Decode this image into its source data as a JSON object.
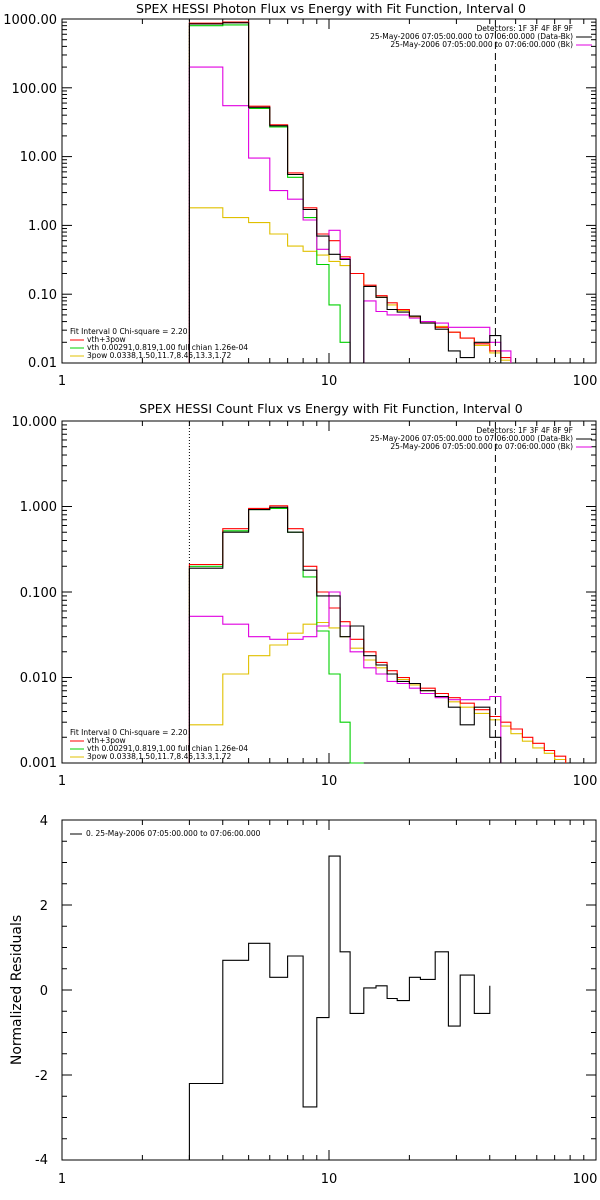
{
  "colors": {
    "black": "#000000",
    "red": "#ff0000",
    "green": "#00d000",
    "magenta": "#e000e0",
    "yellow": "#e0c000"
  },
  "chart_data": [
    {
      "type": "line",
      "title": "SPEX HESSI Photon Flux vs Energy with Fit Function, Interval 0",
      "xscale": "log",
      "yscale": "log",
      "xlim": [
        1,
        100
      ],
      "ylim": [
        0.01,
        1000
      ],
      "xticks": [
        "1",
        "10",
        "100"
      ],
      "yticks": [
        "0.01",
        "0.10",
        "1.00",
        "10.00",
        "100.00",
        "1000.00"
      ],
      "info_lines": [
        "Detectors: 1F 3F 4F 8F 9F",
        "25-May-2006 07:05:00.000 to 07:06:00.000 (Data-Bk)",
        "25-May-2006 07:05:00.000 to 07:06:00.000 (Bk)"
      ],
      "legend_lines": [
        "Fit Interval  0   Chi-square = 2.20",
        "vth+3pow",
        "vth 0.00291,0.819,1.00   full chian 1.26e-04",
        "3pow 0.0338,1.50,11.7,8.45,13.3,1.72"
      ],
      "edges": [
        3.0,
        4.0,
        5.0,
        6.0,
        7.0,
        8.0,
        9.0,
        10.0,
        11.0,
        12.0,
        13.5,
        15.0,
        16.5,
        18.0,
        20.0,
        22.0,
        25.0,
        28.0,
        31.0,
        35.0,
        40.0,
        44.0,
        48.0
      ],
      "series": [
        {
          "name": "Data-Bk",
          "color": "black",
          "values": [
            850,
            880,
            52,
            28,
            5.5,
            1.7,
            0.7,
            0.38,
            0.32,
            0.009,
            0.13,
            0.09,
            0.06,
            0.055,
            0.048,
            0.038,
            0.031,
            0.015,
            0.012,
            0.02,
            0.025,
            null
          ]
        },
        {
          "name": "Bk",
          "color": "magenta",
          "values": [
            200,
            55,
            9.5,
            3.2,
            2.4,
            1.2,
            0.45,
            0.85,
            0.33,
            0.009,
            0.08,
            0.056,
            0.05,
            0.05,
            0.045,
            0.04,
            0.038,
            0.033,
            0.033,
            0.033,
            0.02,
            0.015
          ]
        },
        {
          "name": "vth+3pow",
          "color": "red",
          "values": [
            870,
            900,
            54,
            29,
            5.8,
            1.8,
            0.75,
            0.6,
            0.35,
            0.2,
            0.135,
            0.095,
            0.075,
            0.06,
            0.048,
            0.04,
            0.033,
            0.028,
            0.023,
            0.019,
            0.015,
            0.012
          ]
        },
        {
          "name": "vth",
          "color": "green",
          "values": [
            800,
            820,
            50,
            27,
            5.0,
            1.3,
            0.27,
            0.07,
            0.02,
            0.003,
            null,
            null,
            null,
            null,
            null,
            null,
            null,
            null,
            null,
            null,
            null,
            null
          ]
        },
        {
          "name": "3pow",
          "color": "yellow",
          "values": [
            1.8,
            1.3,
            1.1,
            0.75,
            0.5,
            0.42,
            0.37,
            0.3,
            0.26,
            0.2,
            0.13,
            0.09,
            0.07,
            0.058,
            0.047,
            0.04,
            0.034,
            0.028,
            0.023,
            0.018,
            0.014,
            0.011
          ]
        }
      ],
      "vlines": [
        {
          "x": 3.0,
          "style": "dotted"
        },
        {
          "x": 42.0,
          "style": "dashed"
        }
      ]
    },
    {
      "type": "line",
      "title": "SPEX HESSI Count Flux vs Energy with Fit Function, Interval 0",
      "xscale": "log",
      "yscale": "log",
      "xlim": [
        1,
        100
      ],
      "ylim": [
        0.001,
        10
      ],
      "xticks": [
        "1",
        "10",
        "100"
      ],
      "yticks": [
        "0.001",
        "0.010",
        "0.100",
        "1.000",
        "10.000"
      ],
      "info_lines": [
        "Detectors: 1F 3F 4F 8F 9F",
        "25-May-2006 07:05:00.000 to 07:06:00.000 (Data-Bk)",
        "25-May-2006 07:05:00.000 to 07:06:00.000 (Bk)"
      ],
      "legend_lines": [
        "Fit Interval  0   Chi-square = 2.20",
        "vth+3pow",
        "vth 0.00291,0.819,1.00   full chian 1.26e-04",
        "3pow 0.0338,1.50,11.7,8.45,13.3,1.72"
      ],
      "edges": [
        3.0,
        4.0,
        5.0,
        6.0,
        7.0,
        8.0,
        9.0,
        10.0,
        11.0,
        12.0,
        13.5,
        15.0,
        16.5,
        18.0,
        20.0,
        22.0,
        25.0,
        28.0,
        31.0,
        35.0,
        40.0,
        44.0,
        48.0,
        53.0,
        58.0,
        64.0,
        70.0,
        77.0
      ],
      "series": [
        {
          "name": "Data-Bk",
          "color": "black",
          "values": [
            0.19,
            0.5,
            0.92,
            0.98,
            0.5,
            0.18,
            0.09,
            0.09,
            0.03,
            0.04,
            0.018,
            0.014,
            0.011,
            0.009,
            0.0085,
            0.007,
            0.006,
            0.0045,
            0.0028,
            0.0045,
            0.002,
            null,
            null,
            null,
            null,
            null,
            null
          ]
        },
        {
          "name": "Bk",
          "color": "magenta",
          "values": [
            0.052,
            0.042,
            0.03,
            0.028,
            0.028,
            0.03,
            0.04,
            0.1,
            0.04,
            0.02,
            0.013,
            0.011,
            0.009,
            0.0085,
            0.0075,
            0.0065,
            0.0058,
            0.0055,
            0.0055,
            0.0055,
            0.006,
            null,
            null,
            null,
            null,
            null,
            null
          ]
        },
        {
          "name": "vth+3pow",
          "color": "red",
          "values": [
            0.21,
            0.55,
            0.95,
            1.02,
            0.55,
            0.2,
            0.1,
            0.065,
            0.045,
            0.028,
            0.02,
            0.015,
            0.012,
            0.01,
            0.0085,
            0.0075,
            0.0065,
            0.0058,
            0.005,
            0.0042,
            0.0035,
            0.003,
            0.0025,
            0.002,
            0.0017,
            0.0014,
            0.0012
          ]
        },
        {
          "name": "vth",
          "color": "green",
          "values": [
            0.2,
            0.52,
            0.92,
            0.95,
            0.5,
            0.15,
            0.035,
            0.011,
            0.003,
            0.001,
            null,
            null,
            null,
            null,
            null,
            null,
            null,
            null,
            null,
            null,
            null,
            null,
            null,
            null,
            null,
            null,
            null
          ]
        },
        {
          "name": "3pow",
          "color": "yellow",
          "values": [
            0.0028,
            0.011,
            0.018,
            0.024,
            0.033,
            0.042,
            0.044,
            0.038,
            0.03,
            0.022,
            0.016,
            0.013,
            0.011,
            0.0095,
            0.0082,
            0.007,
            0.006,
            0.0052,
            0.0045,
            0.0038,
            0.0032,
            0.0027,
            0.0022,
            0.0018,
            0.0015,
            0.0013,
            0.0011
          ]
        }
      ],
      "vlines": [
        {
          "x": 3.0,
          "style": "dotted"
        },
        {
          "x": 42.0,
          "style": "dashed"
        }
      ]
    },
    {
      "type": "line",
      "title": "",
      "xscale": "log",
      "yscale": "linear",
      "xlim": [
        1,
        100
      ],
      "ylim": [
        -4,
        4
      ],
      "xticks": [
        "1",
        "10",
        "100"
      ],
      "yticks": [
        "-4",
        "-2",
        "0",
        "2",
        "4"
      ],
      "ylabel": "Normalized Residuals",
      "legend_lines": [
        "0. 25-May-2006 07:05:00.000 to 07:06:00.000"
      ],
      "edges": [
        3.0,
        4.0,
        5.0,
        6.0,
        7.0,
        8.0,
        9.0,
        10.0,
        11.0,
        12.0,
        13.5,
        15.0,
        16.5,
        18.0,
        20.0,
        22.0,
        25.0,
        28.0,
        31.0,
        35.0,
        40.0
      ],
      "series": [
        {
          "name": "residuals",
          "color": "black",
          "values": [
            -2.2,
            0.7,
            1.1,
            0.3,
            0.8,
            -2.75,
            -0.65,
            3.15,
            0.9,
            -0.55,
            0.05,
            0.1,
            -0.2,
            -0.25,
            0.3,
            0.25,
            0.9,
            -0.85,
            0.35,
            -0.55,
            0.1
          ]
        }
      ]
    }
  ]
}
